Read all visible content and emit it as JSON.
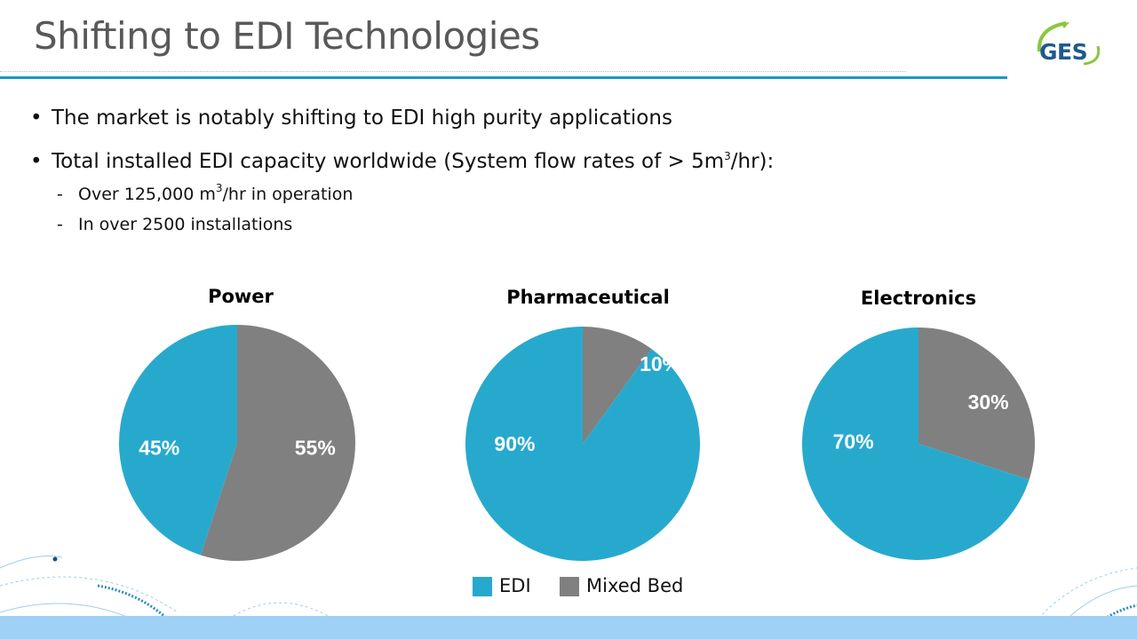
{
  "slide": {
    "title": "Shifting to EDI Technologies",
    "logo_text": "GES",
    "bullets": [
      "The market is notably shifting to EDI high purity applications",
      "Total installed EDI capacity worldwide (System flow rates of > 5m",
      "/hr):"
    ],
    "bullet_superscript": "3",
    "sub_bullets": [
      "Over 125,000 m",
      "/hr in operation",
      "In over 2500 installations"
    ],
    "sub_superscript": "3",
    "bullet_glyph": "•",
    "dash_glyph": "-"
  },
  "legend": {
    "items": [
      {
        "label": "EDI",
        "color": "#27a9ce"
      },
      {
        "label": "Mixed Bed",
        "color": "#808080"
      }
    ]
  },
  "colors": {
    "edi": "#27a9ce",
    "mixed_bed": "#808080",
    "accent_rule": "#1f96c8",
    "footer_band": "#9fd0f5"
  },
  "chart_data": [
    {
      "type": "pie",
      "title": "Power",
      "categories": [
        "EDI",
        "Mixed Bed"
      ],
      "values": [
        45,
        55
      ],
      "labels": [
        "45%",
        "55%"
      ]
    },
    {
      "type": "pie",
      "title": "Pharmaceutical",
      "categories": [
        "EDI",
        "Mixed Bed"
      ],
      "values": [
        90,
        10
      ],
      "labels": [
        "90%",
        "10%"
      ]
    },
    {
      "type": "pie",
      "title": "Electronics",
      "categories": [
        "EDI",
        "Mixed Bed"
      ],
      "values": [
        70,
        30
      ],
      "labels": [
        "70%",
        "30%"
      ]
    }
  ]
}
